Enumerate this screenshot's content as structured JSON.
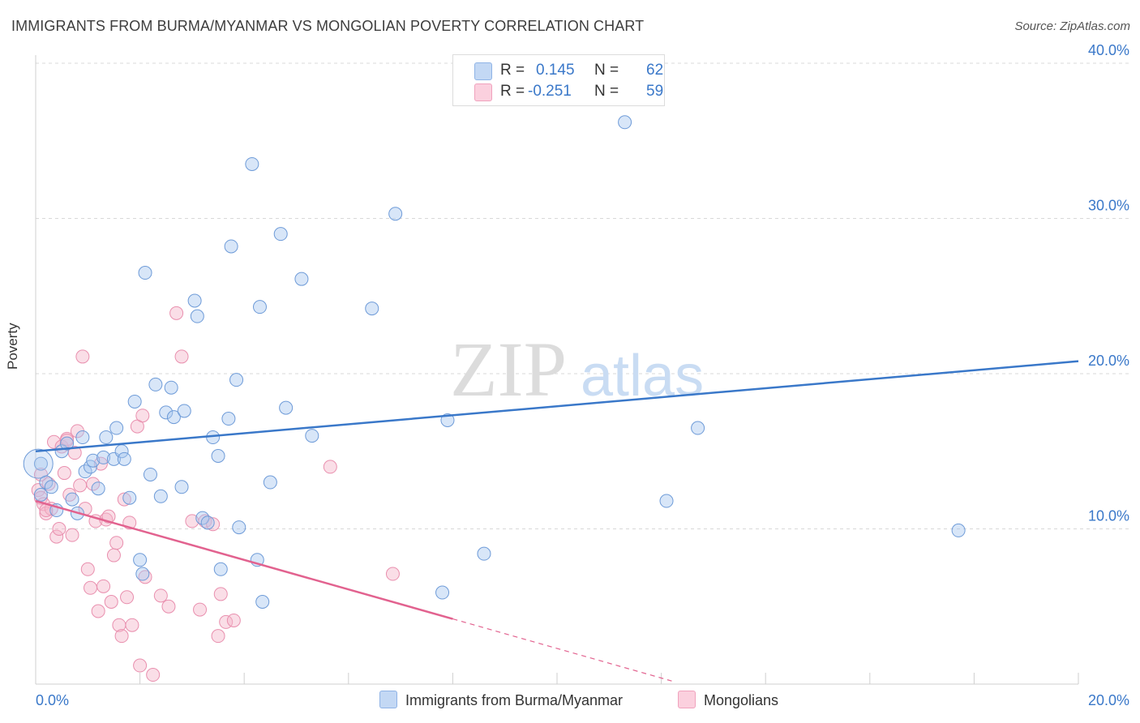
{
  "title": "IMMIGRANTS FROM BURMA/MYANMAR VS MONGOLIAN POVERTY CORRELATION CHART",
  "source": "Source: ZipAtlas.com",
  "watermark": {
    "zip": "ZIP",
    "atlas": "atlas"
  },
  "legend": {
    "r_label": "R =",
    "n_label": "N =",
    "blue": {
      "r": "0.145",
      "n": "62"
    },
    "pink": {
      "r": "-0.251",
      "n": "59"
    }
  },
  "colors": {
    "blue": "#3a78c9",
    "blue_fill": "#a9c8f0",
    "pink": "#e2628f",
    "pink_fill": "#f5b5ca"
  },
  "chart_data": {
    "type": "scatter",
    "title": "IMMIGRANTS FROM BURMA/MYANMAR VS MONGOLIAN POVERTY CORRELATION CHART",
    "xlabel": "",
    "ylabel": "Poverty",
    "xlim": [
      0,
      20
    ],
    "ylim": [
      0,
      40
    ],
    "x_tick_labels": [
      "0.0%",
      "20.0%"
    ],
    "y_ticks": [
      10,
      20,
      30,
      40
    ],
    "y_tick_labels": [
      "10.0%",
      "20.0%",
      "30.0%",
      "40.0%"
    ],
    "grid": true,
    "series": [
      {
        "name": "Immigrants from Burma/Myanmar",
        "color": "#3a78c9",
        "trend": {
          "x": [
            0,
            20
          ],
          "y": [
            15.0,
            20.8
          ]
        },
        "points": [
          [
            0.1,
            14.2
          ],
          [
            0.1,
            12.2
          ],
          [
            0.2,
            13.0
          ],
          [
            0.3,
            12.7
          ],
          [
            0.4,
            11.2
          ],
          [
            0.5,
            15.0
          ],
          [
            0.6,
            15.5
          ],
          [
            0.7,
            11.9
          ],
          [
            0.8,
            11.0
          ],
          [
            0.9,
            15.9
          ],
          [
            0.95,
            13.7
          ],
          [
            1.05,
            14.0
          ],
          [
            1.1,
            14.4
          ],
          [
            1.2,
            12.6
          ],
          [
            1.3,
            14.6
          ],
          [
            1.35,
            15.9
          ],
          [
            1.5,
            14.5
          ],
          [
            1.55,
            16.5
          ],
          [
            1.65,
            15.0
          ],
          [
            1.7,
            14.5
          ],
          [
            1.8,
            12.0
          ],
          [
            1.9,
            18.2
          ],
          [
            2.0,
            8.0
          ],
          [
            2.05,
            7.1
          ],
          [
            2.1,
            26.5
          ],
          [
            2.2,
            13.5
          ],
          [
            2.3,
            19.3
          ],
          [
            2.4,
            12.1
          ],
          [
            2.5,
            17.5
          ],
          [
            2.6,
            19.1
          ],
          [
            2.65,
            17.2
          ],
          [
            2.8,
            12.7
          ],
          [
            2.85,
            17.6
          ],
          [
            3.05,
            24.7
          ],
          [
            3.1,
            23.7
          ],
          [
            3.2,
            10.7
          ],
          [
            3.3,
            10.4
          ],
          [
            3.4,
            15.9
          ],
          [
            3.5,
            14.7
          ],
          [
            3.55,
            7.4
          ],
          [
            3.7,
            17.1
          ],
          [
            3.75,
            28.2
          ],
          [
            3.85,
            19.6
          ],
          [
            3.9,
            10.1
          ],
          [
            4.15,
            33.5
          ],
          [
            4.25,
            8.0
          ],
          [
            4.3,
            24.3
          ],
          [
            4.35,
            5.3
          ],
          [
            4.5,
            13.0
          ],
          [
            4.7,
            29.0
          ],
          [
            4.8,
            17.8
          ],
          [
            5.1,
            26.1
          ],
          [
            5.3,
            16.0
          ],
          [
            6.45,
            24.2
          ],
          [
            6.9,
            30.3
          ],
          [
            7.8,
            5.9
          ],
          [
            7.9,
            17.0
          ],
          [
            8.6,
            8.4
          ],
          [
            11.3,
            36.2
          ],
          [
            12.1,
            11.8
          ],
          [
            12.7,
            16.5
          ],
          [
            17.7,
            9.9
          ]
        ]
      },
      {
        "name": "Mongolians",
        "color": "#e2628f",
        "trend": {
          "x": [
            0,
            8.0
          ],
          "y": [
            11.8,
            4.2
          ]
        },
        "trend_dashed": {
          "x": [
            8.0,
            12.2
          ],
          "y": [
            4.2,
            0.2
          ]
        },
        "points": [
          [
            0.05,
            12.5
          ],
          [
            0.1,
            13.5
          ],
          [
            0.1,
            12.0
          ],
          [
            0.15,
            11.6
          ],
          [
            0.2,
            11.0
          ],
          [
            0.25,
            12.9
          ],
          [
            0.3,
            11.3
          ],
          [
            0.35,
            15.6
          ],
          [
            0.4,
            9.5
          ],
          [
            0.45,
            10.0
          ],
          [
            0.5,
            15.3
          ],
          [
            0.55,
            13.6
          ],
          [
            0.6,
            15.8
          ],
          [
            0.65,
            12.2
          ],
          [
            0.7,
            9.6
          ],
          [
            0.75,
            14.9
          ],
          [
            0.8,
            16.3
          ],
          [
            0.85,
            12.8
          ],
          [
            0.9,
            21.1
          ],
          [
            0.95,
            11.3
          ],
          [
            1.0,
            7.4
          ],
          [
            1.05,
            6.2
          ],
          [
            1.1,
            12.9
          ],
          [
            1.15,
            10.5
          ],
          [
            1.2,
            4.7
          ],
          [
            1.25,
            14.2
          ],
          [
            1.3,
            6.3
          ],
          [
            1.35,
            10.6
          ],
          [
            1.4,
            10.8
          ],
          [
            1.45,
            5.3
          ],
          [
            1.5,
            8.3
          ],
          [
            1.55,
            9.1
          ],
          [
            1.6,
            3.8
          ],
          [
            1.65,
            3.1
          ],
          [
            1.7,
            11.9
          ],
          [
            1.75,
            5.6
          ],
          [
            1.8,
            10.4
          ],
          [
            1.85,
            3.8
          ],
          [
            1.95,
            16.6
          ],
          [
            2.0,
            1.2
          ],
          [
            2.05,
            17.3
          ],
          [
            2.1,
            6.9
          ],
          [
            2.25,
            0.6
          ],
          [
            2.4,
            5.7
          ],
          [
            2.55,
            5.0
          ],
          [
            2.7,
            23.9
          ],
          [
            2.8,
            21.1
          ],
          [
            3.0,
            10.5
          ],
          [
            3.15,
            4.8
          ],
          [
            3.25,
            10.5
          ],
          [
            3.4,
            10.3
          ],
          [
            3.5,
            3.1
          ],
          [
            3.55,
            5.8
          ],
          [
            3.65,
            4.0
          ],
          [
            3.8,
            4.1
          ],
          [
            5.65,
            14.0
          ],
          [
            6.85,
            7.1
          ],
          [
            0.2,
            11.2
          ],
          [
            0.6,
            15.7
          ]
        ]
      }
    ]
  },
  "bottom_legend": {
    "blue_label": "Immigrants from Burma/Myanmar",
    "pink_label": "Mongolians"
  }
}
